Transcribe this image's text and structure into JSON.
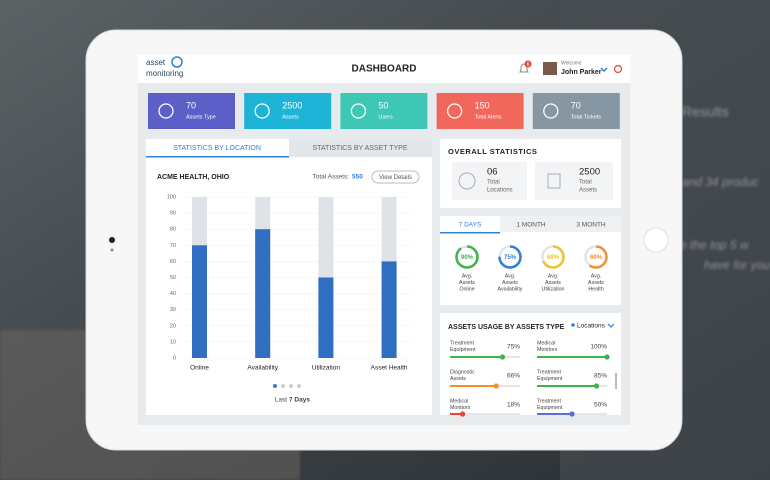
{
  "background": {
    "texts": [
      "Results",
      "and 34 produc",
      "re the top 5 w",
      "have for you"
    ]
  },
  "header": {
    "logo_line1": "asset",
    "logo_line2": "monitoring",
    "title": "DASHBOARD",
    "notification_count": 6,
    "welcome": "Welcome",
    "user": "John Parker"
  },
  "tiles": [
    {
      "value": 70,
      "label": "Assets Type",
      "color": "#5b5fc7"
    },
    {
      "value": 2500,
      "label": "Assets",
      "color": "#1db4d8"
    },
    {
      "value": 50,
      "label": "Users",
      "color": "#3ec7b4"
    },
    {
      "value": 150,
      "label": "Total Alerts",
      "color": "#f2675c"
    },
    {
      "value": 70,
      "label": "Total Tickets",
      "color": "#8796a3"
    }
  ],
  "location_panel": {
    "tabs": [
      "STATISTICS BY LOCATION",
      "STATISTICS BY ASSET TYPE"
    ],
    "location": "ACME HEALTH, OHIO",
    "total_label": "Total Assets:",
    "total_value": 550,
    "button": "View Details",
    "footer_prefix": "Last",
    "footer_emphasis": "7 Days"
  },
  "chart_data": {
    "type": "bar",
    "categories": [
      "Online",
      "Availability",
      "Utilization",
      "Asset Health"
    ],
    "values": [
      70,
      80,
      50,
      60
    ],
    "color": "#2f6ec0",
    "track_color": "#dfe2e7",
    "ylim": [
      0,
      100
    ],
    "yticks": [
      0,
      10,
      20,
      30,
      40,
      50,
      60,
      70,
      80,
      90,
      100
    ],
    "grid": true
  },
  "overall": {
    "title": "OVERALL STATISTICS",
    "items": [
      {
        "value": "06",
        "label": [
          "Total",
          "Locations"
        ]
      },
      {
        "value": 2500,
        "label": [
          "Total",
          "Assets"
        ]
      }
    ]
  },
  "period": {
    "tabs": [
      "7 DAYS",
      "1 MONTH",
      "3 MONTH"
    ],
    "gauges": {
      "lim": [
        0,
        100
      ],
      "values": [
        90,
        75,
        68,
        60
      ],
      "value_labels": [
        "90%",
        "75%",
        "68%",
        "60%"
      ],
      "colors": [
        "#3cb54a",
        "#2f7fd8",
        "#f2c12e",
        "#f2902e"
      ],
      "labels": [
        [
          "Avg.",
          "Assets",
          "Online"
        ],
        [
          "Avg.",
          "Assets",
          "Availability"
        ],
        [
          "Avg.",
          "Assets",
          "Utilization"
        ],
        [
          "Avg.",
          "Assets",
          "Health"
        ]
      ]
    }
  },
  "usage": {
    "title": "ASSETS USAGE BY ASSETS TYPE",
    "filter": "Locations",
    "lim": [
      0,
      100
    ],
    "columns": [
      [
        {
          "label": [
            "Treatment",
            "Equipment"
          ],
          "value": 75,
          "value_label": "75%",
          "color": "#3cb54a"
        },
        {
          "label": [
            "Diagnostic",
            "Assets"
          ],
          "value": 66,
          "value_label": "66%",
          "color": "#f2902e"
        },
        {
          "label": [
            "Medical",
            "Monitors"
          ],
          "value": 18,
          "value_label": "18%",
          "color": "#e8453c"
        }
      ],
      [
        {
          "label": [
            "Medical",
            "Monitors"
          ],
          "value": 100,
          "value_label": "100%",
          "color": "#3cb54a"
        },
        {
          "label": [
            "Treatment",
            "Equipment"
          ],
          "value": 85,
          "value_label": "85%",
          "color": "#3cb54a"
        },
        {
          "label": [
            "Treatment",
            "Equipment"
          ],
          "value": 50,
          "value_label": "50%",
          "color": "#5b6fd6"
        }
      ]
    ]
  }
}
